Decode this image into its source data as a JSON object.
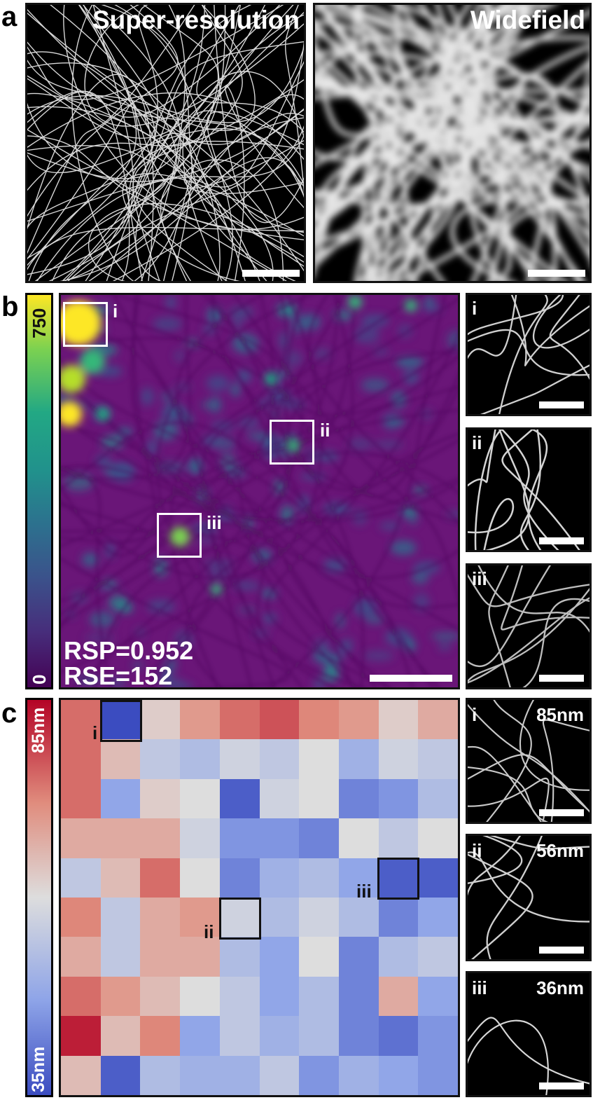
{
  "panels": {
    "a": {
      "label": "a",
      "left_title": "Super-resolution",
      "right_title": "Widefield"
    },
    "b": {
      "label": "b",
      "colorbar": {
        "max_label": "750",
        "min_label": "0",
        "colors": [
          "#fde725",
          "#35b779",
          "#21918c",
          "#31688e",
          "#443983",
          "#440154"
        ]
      },
      "map_color": "#6a1678",
      "rois": [
        "i",
        "ii",
        "iii"
      ],
      "rsp": "RSP=0.952",
      "rse": "RSE=152",
      "insets": [
        "i",
        "ii",
        "iii"
      ]
    },
    "c": {
      "label": "c",
      "colorbar": {
        "top_label": "85nm",
        "bottom_label": "35nm",
        "colors": [
          "#b40426",
          "#d6d6d6",
          "#3b4cc0"
        ]
      },
      "rois": [
        "i",
        "ii",
        "iii"
      ],
      "insets": [
        {
          "roman": "i",
          "value": "85nm"
        },
        {
          "roman": "ii",
          "value": "56nm"
        },
        {
          "roman": "iii",
          "value": "36nm"
        }
      ],
      "grid_levels": [
        [
          0.2,
          1.0,
          0.45,
          0.3,
          0.2,
          0.15,
          0.25,
          0.3,
          0.45,
          0.35
        ],
        [
          0.2,
          0.4,
          0.6,
          0.65,
          0.55,
          0.6,
          0.5,
          0.7,
          0.55,
          0.6
        ],
        [
          0.2,
          0.75,
          0.45,
          0.5,
          0.95,
          0.55,
          0.5,
          0.85,
          0.8,
          0.65
        ],
        [
          0.35,
          0.35,
          0.35,
          0.55,
          0.8,
          0.8,
          0.85,
          0.5,
          0.6,
          0.5
        ],
        [
          0.6,
          0.4,
          0.2,
          0.5,
          0.85,
          0.7,
          0.65,
          0.75,
          0.95,
          0.95
        ],
        [
          0.25,
          0.6,
          0.35,
          0.3,
          0.55,
          0.65,
          0.55,
          0.65,
          0.85,
          0.75
        ],
        [
          0.35,
          0.6,
          0.35,
          0.35,
          0.65,
          0.75,
          0.5,
          0.85,
          0.65,
          0.6
        ],
        [
          0.2,
          0.3,
          0.4,
          0.5,
          0.6,
          0.75,
          0.65,
          0.85,
          0.35,
          0.75
        ],
        [
          0.05,
          0.4,
          0.25,
          0.75,
          0.6,
          0.7,
          0.65,
          0.85,
          0.9,
          0.8
        ],
        [
          0.4,
          0.95,
          0.65,
          0.7,
          0.7,
          0.6,
          0.8,
          0.7,
          0.75,
          0.8
        ]
      ]
    }
  }
}
